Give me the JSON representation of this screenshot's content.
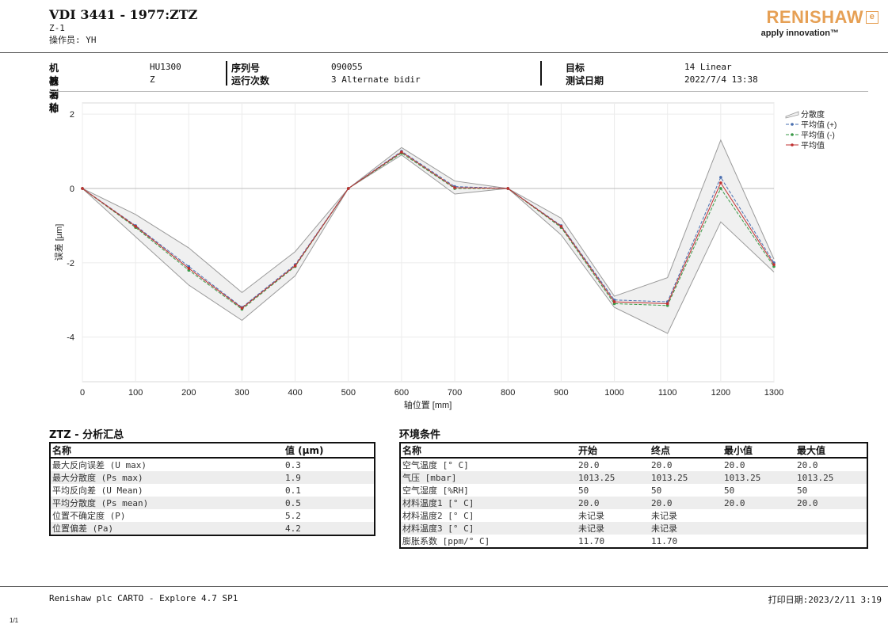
{
  "header": {
    "title": "VDI 3441 - 1977:ZTZ",
    "subtitle": "Z-1",
    "operator": "操作员: YH",
    "logo_text": "RENISHAW",
    "logo_tagline": "apply innovation™"
  },
  "info": {
    "machine_label": "机器名称",
    "machine_value": "HU1300",
    "axis_label": "被测轴",
    "axis_value": "Z",
    "serial_label": "序列号",
    "serial_value": "090055",
    "runs_label": "运行次数",
    "runs_value": "3 Alternate bidir",
    "target_label": "目标",
    "target_value": "14 Linear",
    "date_label": "测试日期",
    "date_value": "2022/7/4 13:38"
  },
  "chart_data": {
    "type": "line",
    "xlabel": "轴位置 [mm]",
    "ylabel": "误差 [µm]",
    "xlim": [
      0,
      1300
    ],
    "ylim": [
      -5.2,
      2.3
    ],
    "xticks": [
      "0",
      "100",
      "200",
      "300",
      "400",
      "500",
      "600",
      "700",
      "800",
      "900",
      "1000",
      "1100",
      "1200",
      "1300"
    ],
    "yticks": [
      "2",
      "0",
      "-2",
      "-4"
    ],
    "x": [
      0,
      100,
      200,
      300,
      400,
      500,
      600,
      700,
      800,
      900,
      1000,
      1100,
      1200,
      1300
    ],
    "legend_position": "top-right",
    "band": {
      "name": "分散度",
      "upper": [
        0,
        -0.7,
        -1.6,
        -2.8,
        -1.7,
        0,
        1.1,
        0.2,
        0,
        -0.8,
        -2.9,
        -2.4,
        1.3,
        -1.9
      ],
      "lower": [
        0,
        -1.3,
        -2.6,
        -3.55,
        -2.35,
        0,
        0.9,
        -0.15,
        0,
        -1.25,
        -3.2,
        -3.9,
        -0.9,
        -2.25
      ]
    },
    "series": [
      {
        "name": "平均值 (+)",
        "color": "#4a6fb0",
        "values": [
          0,
          -1.0,
          -2.1,
          -3.2,
          -2.05,
          0,
          1.0,
          0.05,
          0,
          -1.0,
          -3.0,
          -3.05,
          0.3,
          -2.0
        ]
      },
      {
        "name": "平均值 (-)",
        "color": "#3a9a48",
        "values": [
          0,
          -1.05,
          -2.2,
          -3.25,
          -2.1,
          0,
          0.95,
          0.0,
          0,
          -1.05,
          -3.1,
          -3.15,
          0.0,
          -2.1
        ]
      },
      {
        "name": "平均值",
        "color": "#c03030",
        "values": [
          0,
          -1.02,
          -2.15,
          -3.22,
          -2.08,
          0,
          0.98,
          0.02,
          0,
          -1.02,
          -3.05,
          -3.1,
          0.15,
          -2.05
        ]
      }
    ]
  },
  "analysis": {
    "title": "ZTZ - 分析汇总",
    "headers": [
      "名称",
      "值 (µm)"
    ],
    "rows": [
      [
        "最大反向误差 (U max)",
        "0.3"
      ],
      [
        "最大分散度 (Ps max)",
        "1.9"
      ],
      [
        "平均反向差 (U Mean)",
        "0.1"
      ],
      [
        "平均分散度 (Ps mean)",
        "0.5"
      ],
      [
        "位置不确定度 (P)",
        "5.2"
      ],
      [
        "位置偏差 (Pa)",
        "4.2"
      ]
    ]
  },
  "environment": {
    "title": "环境条件",
    "headers": [
      "名称",
      "开始",
      "终点",
      "最小值",
      "最大值"
    ],
    "rows": [
      [
        "空气温度 [° C]",
        "20.0",
        "20.0",
        "20.0",
        "20.0"
      ],
      [
        "气压 [mbar]",
        "1013.25",
        "1013.25",
        "1013.25",
        "1013.25"
      ],
      [
        "空气湿度 [%RH]",
        "50",
        "50",
        "50",
        "50"
      ],
      [
        "材料温度1 [° C]",
        "20.0",
        "20.0",
        "20.0",
        "20.0"
      ],
      [
        "材料温度2 [° C]",
        "未记录",
        "未记录",
        "",
        ""
      ],
      [
        "材料温度3 [° C]",
        "未记录",
        "未记录",
        "",
        ""
      ],
      [
        "膨胀系数 [ppm/° C]",
        "11.70",
        "11.70",
        "",
        ""
      ]
    ]
  },
  "footer": {
    "software": "Renishaw plc CARTO - Explore 4.7 SP1",
    "print_date": "打印日期:2023/2/11 3:19",
    "page": "1/1"
  }
}
